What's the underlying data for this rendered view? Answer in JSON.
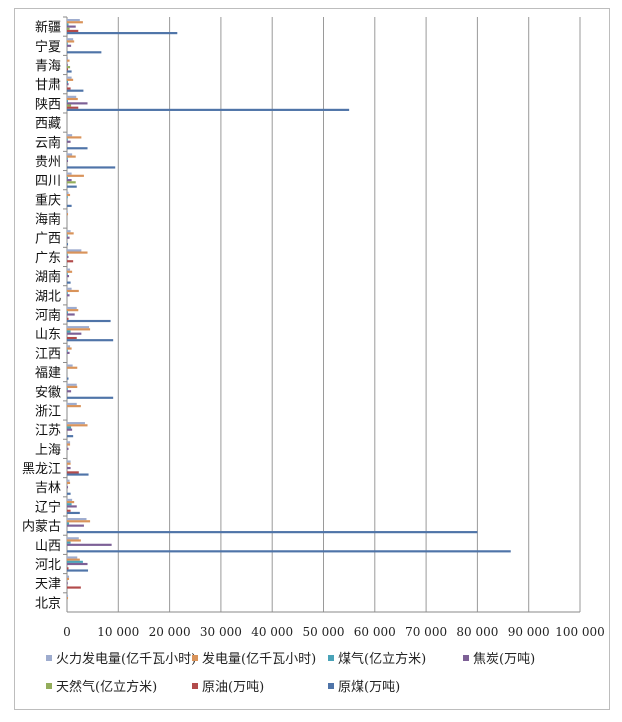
{
  "chart_data": {
    "type": "bar",
    "orientation": "horizontal",
    "title": "",
    "xlabel": "",
    "ylabel": "",
    "xlim": [
      0,
      100000
    ],
    "x_ticks": [
      0,
      10000,
      20000,
      30000,
      40000,
      50000,
      60000,
      70000,
      80000,
      90000,
      100000
    ],
    "x_tick_labels": [
      "0",
      "10 000",
      "20 000",
      "30 000",
      "40 000",
      "50 000",
      "60 000",
      "70 000",
      "80 000",
      "90 000",
      "100 000"
    ],
    "grid": "vertical",
    "legend_position": "bottom",
    "categories": [
      "新疆",
      "宁夏",
      "青海",
      "甘肃",
      "陕西",
      "西藏",
      "云南",
      "贵州",
      "四川",
      "重庆",
      "海南",
      "广西",
      "广东",
      "湖南",
      "湖北",
      "河南",
      "山东",
      "江西",
      "福建",
      "安徽",
      "浙江",
      "江苏",
      "上海",
      "黑龙江",
      "吉林",
      "辽宁",
      "内蒙古",
      "山西",
      "河北",
      "天津",
      "北京"
    ],
    "series": [
      {
        "name": "火力发电量(亿千瓦小时)",
        "color": "#9eacce",
        "values": [
          2500,
          1200,
          200,
          900,
          1800,
          0,
          1000,
          1000,
          900,
          300,
          100,
          700,
          2800,
          600,
          900,
          1900,
          4300,
          600,
          1100,
          1900,
          1900,
          3500,
          600,
          700,
          500,
          1000,
          3800,
          2300,
          2000,
          400,
          200
        ]
      },
      {
        "name": "发电量(亿千瓦小时)",
        "color": "#d9935a",
        "values": [
          3100,
          1400,
          500,
          1200,
          2100,
          0,
          2800,
          1700,
          3300,
          600,
          200,
          1300,
          4000,
          1000,
          2300,
          2200,
          4500,
          900,
          2000,
          2000,
          2700,
          4000,
          600,
          700,
          600,
          1400,
          4500,
          2700,
          2500,
          400,
          200
        ]
      },
      {
        "name": "煤气(亿立方米)",
        "color": "#4aa3b8",
        "values": [
          300,
          100,
          0,
          200,
          200,
          0,
          100,
          100,
          200,
          100,
          0,
          100,
          100,
          100,
          100,
          200,
          700,
          100,
          0,
          100,
          0,
          800,
          0,
          0,
          0,
          900,
          400,
          700,
          3100,
          0,
          0
        ]
      },
      {
        "name": "焦炭(万吨)",
        "color": "#7d6096",
        "values": [
          1700,
          800,
          100,
          300,
          4000,
          0,
          700,
          200,
          900,
          0,
          0,
          500,
          300,
          400,
          500,
          1500,
          2800,
          500,
          0,
          800,
          0,
          1000,
          300,
          700,
          200,
          1900,
          3300,
          8700,
          4000,
          100,
          0
        ]
      },
      {
        "name": "天然气(亿立方米)",
        "color": "#93ad5b",
        "values": [
          500,
          0,
          600,
          0,
          800,
          0,
          0,
          0,
          1700,
          0,
          0,
          0,
          0,
          0,
          0,
          0,
          0,
          0,
          0,
          0,
          0,
          0,
          0,
          0,
          0,
          0,
          0,
          0,
          0,
          0,
          0
        ]
      },
      {
        "name": "原油(万吨)",
        "color": "#b24b4b",
        "values": [
          2200,
          0,
          200,
          700,
          2200,
          0,
          0,
          0,
          0,
          0,
          0,
          0,
          1200,
          0,
          0,
          300,
          1900,
          0,
          0,
          0,
          0,
          0,
          0,
          2300,
          0,
          700,
          0,
          0,
          300,
          2700,
          0
        ]
      },
      {
        "name": "原煤(万吨)",
        "color": "#4f74a8",
        "values": [
          21500,
          6700,
          900,
          3200,
          55000,
          0,
          4000,
          9400,
          1900,
          900,
          0,
          200,
          0,
          700,
          0,
          8500,
          9000,
          0,
          300,
          9000,
          0,
          1200,
          0,
          4200,
          700,
          2500,
          80000,
          86500,
          4100,
          0,
          0
        ]
      }
    ]
  }
}
